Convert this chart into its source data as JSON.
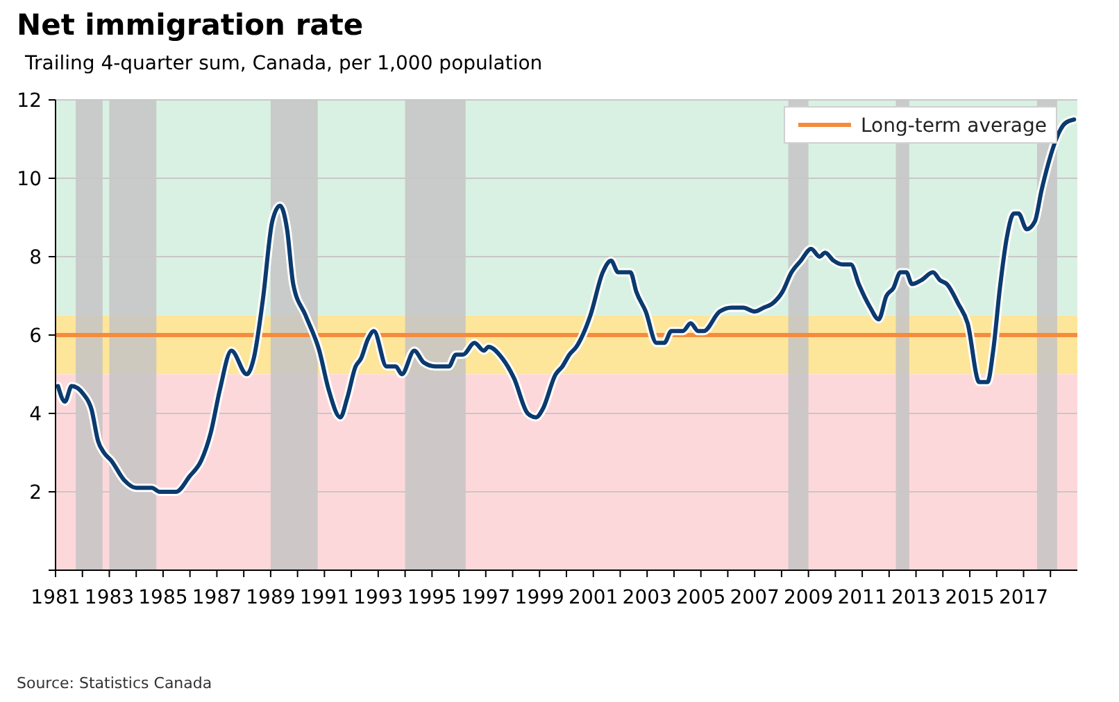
{
  "chart_data": {
    "type": "line",
    "title": "Net immigration rate",
    "subtitle": "Trailing 4-quarter sum, Canada, per 1,000 population",
    "annotations": [
      "Source: Statistics Canada"
    ],
    "xlim": [
      1981,
      2019
    ],
    "xticks": [
      1981,
      {
        "value": 1982,
        "label": null
      },
      1983,
      {
        "value": 1984,
        "label": null
      },
      1985,
      {
        "value": 1986,
        "label": null
      },
      1987,
      {
        "value": 1988,
        "label": null
      },
      1989,
      {
        "value": 1990,
        "label": null
      },
      1991,
      {
        "value": 1992,
        "label": null
      },
      1993,
      {
        "value": 1994,
        "label": null
      },
      1995,
      {
        "value": 1996,
        "label": null
      },
      1997,
      {
        "value": 1998,
        "label": null
      },
      1999,
      {
        "value": 2000,
        "label": null
      },
      2001,
      {
        "value": 2002,
        "label": null
      },
      2003,
      {
        "value": 2004,
        "label": null
      },
      2005,
      {
        "value": 2006,
        "label": null
      },
      2007,
      {
        "value": 2008,
        "label": null
      },
      2009,
      {
        "value": 2010,
        "label": null
      },
      2011,
      {
        "value": 2012,
        "label": null
      },
      2013,
      {
        "value": 2014,
        "label": null
      },
      2015,
      {
        "value": 2016,
        "label": null
      },
      2017,
      {
        "value": 2018,
        "label": null
      }
    ],
    "ylim": [
      0,
      12
    ],
    "yticks": [
      {
        "value": 0,
        "label": null
      },
      2,
      4,
      6,
      8,
      10,
      12
    ],
    "grid": "y",
    "legend": "top right",
    "line_style": "solid",
    "marker": "none",
    "x": [
      1981.09,
      1981.35,
      1981.6,
      1982.03,
      1982.34,
      1982.58,
      1982.8,
      1983.07,
      1983.55,
      1984.0,
      1984.58,
      1984.87,
      1985.48,
      1985.99,
      1986.42,
      1986.77,
      1987.11,
      1987.54,
      1988.11,
      1988.37,
      1988.71,
      1989.06,
      1989.35,
      1989.61,
      1989.84,
      1990.3,
      1990.81,
      1991.16,
      1991.59,
      1991.85,
      1992.16,
      1992.36,
      1992.62,
      1992.84,
      1993.31,
      1993.65,
      1993.88,
      1994.34,
      1994.69,
      1995.12,
      1995.63,
      1995.89,
      1996.15,
      1996.58,
      1996.93,
      1997.1,
      1997.62,
      1998.05,
      1998.56,
      1998.87,
      1999.11,
      1999.6,
      1999.85,
      2000.11,
      2000.37,
      2000.89,
      2001.35,
      2001.66,
      2001.92,
      2002.38,
      2002.6,
      2002.95,
      2003.35,
      2003.64,
      2003.9,
      2004.33,
      2004.62,
      2004.9,
      2005.1,
      2005.7,
      2006.14,
      2006.57,
      2007.0,
      2007.34,
      2007.65,
      2008.03,
      2008.37,
      2008.72,
      2009.1,
      2009.41,
      2009.62,
      2009.93,
      2010.27,
      2010.58,
      2010.87,
      2011.3,
      2011.61,
      2011.9,
      2012.16,
      2012.42,
      2012.64,
      2012.85,
      2013.2,
      2013.63,
      2013.89,
      2014.15,
      2014.57,
      2014.92,
      2015.35,
      2015.66,
      2015.87,
      2016.12,
      2016.38,
      2016.64,
      2016.81,
      2017.12,
      2017.42,
      2017.67,
      2018.54,
      2018.88
    ],
    "series": [
      {
        "color": "#0b3a6e",
        "values": [
          4.7,
          4.3,
          4.7,
          4.5,
          4.1,
          3.3,
          3.0,
          2.8,
          2.3,
          2.1,
          2.1,
          2.0,
          2.0,
          2.4,
          2.8,
          3.5,
          4.6,
          5.6,
          5.0,
          5.4,
          6.9,
          8.9,
          9.3,
          8.7,
          7.3,
          6.5,
          5.6,
          4.6,
          3.9,
          4.4,
          5.2,
          5.4,
          5.9,
          6.1,
          5.2,
          5.2,
          5.0,
          5.6,
          5.3,
          5.2,
          5.2,
          5.5,
          5.5,
          5.8,
          5.6,
          5.7,
          5.4,
          4.9,
          4.0,
          3.9,
          4.1,
          5.0,
          5.2,
          5.5,
          5.7,
          6.5,
          7.6,
          7.9,
          7.6,
          7.6,
          7.1,
          6.6,
          5.8,
          5.8,
          6.1,
          6.1,
          6.3,
          6.1,
          6.1,
          6.6,
          6.7,
          6.7,
          6.6,
          6.7,
          6.8,
          7.1,
          7.6,
          7.9,
          8.2,
          8.0,
          8.1,
          7.9,
          7.8,
          7.8,
          7.3,
          6.7,
          6.4,
          7.0,
          7.2,
          7.6,
          7.6,
          7.3,
          7.4,
          7.6,
          7.4,
          7.3,
          6.8,
          6.3,
          4.8,
          4.8,
          5.6,
          7.2,
          8.5,
          9.1,
          9.1,
          8.7,
          8.9,
          9.7,
          11.4,
          11.5
        ]
      }
    ],
    "ref_lines": [
      {
        "axis": "y",
        "value": 6,
        "label": "Long-term average",
        "color": "#f58b3c",
        "line_style": "solid"
      }
    ],
    "bands": [
      {
        "axis": "y",
        "from": 6.5,
        "to": 12,
        "color": "#d9f1e3"
      },
      {
        "axis": "y",
        "from": 5,
        "to": 6.5,
        "color": "#fde59a"
      },
      {
        "axis": "y",
        "from": 0,
        "to": 5,
        "color": "#fdd8da"
      },
      {
        "axis": "x",
        "from": 1981.75,
        "to": 1982.75,
        "color": "#c4c4c4"
      },
      {
        "axis": "x",
        "from": 1983,
        "to": 1984.75,
        "color": "#c4c4c4"
      },
      {
        "axis": "x",
        "from": 1989,
        "to": 1990.75,
        "color": "#c4c4c4"
      },
      {
        "axis": "x",
        "from": 1994,
        "to": 1996.25,
        "color": "#c4c4c4"
      },
      {
        "axis": "x",
        "from": 2008.25,
        "to": 2009,
        "color": "#c4c4c4"
      },
      {
        "axis": "x",
        "from": 2012.25,
        "to": 2012.75,
        "color": "#c4c4c4"
      },
      {
        "axis": "x",
        "from": 2017.5,
        "to": 2018.25,
        "color": "#c4c4c4"
      }
    ]
  }
}
